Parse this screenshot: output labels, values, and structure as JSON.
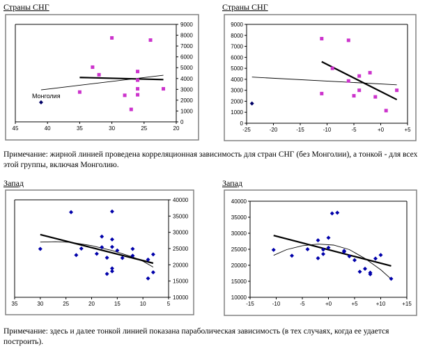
{
  "titles": [
    "Страны СНГ",
    "Страны СНГ",
    "Запад",
    "Запад"
  ],
  "notes": {
    "note1": "Примечание: жирной линией проведена корреляционная зависимость для стран СНГ (без Монголии), а тонкой - для всех этой группы, включая Монголию.",
    "note2": "Примечание: здесь и далее тонкой линией показана параболическая зависимость (в тех случаях, когда ее удается построить)."
  },
  "colors": {
    "cis_points": "#cc33cc",
    "mongolia_point": "#000066",
    "west_points": "#0000aa",
    "lines": "#000000"
  },
  "chart_data": [
    {
      "type": "scatter",
      "title": "Страны СНГ",
      "x_reversed": true,
      "xlim": [
        20,
        45
      ],
      "ylim": [
        0,
        9000
      ],
      "xticks": [
        45,
        40,
        35,
        30,
        25,
        20
      ],
      "xtick_labels": [
        "45",
        "40",
        "35",
        "30",
        "25",
        "20"
      ],
      "yticks": [
        0,
        1000,
        2000,
        3000,
        4000,
        5000,
        6000,
        7000,
        8000,
        9000
      ],
      "ytick_labels": [
        "0",
        "1000",
        "2000",
        "3000",
        "4000",
        "5000",
        "6000",
        "7000",
        "8000",
        "9000"
      ],
      "yaxis_side": "right",
      "series": [
        {
          "name": "СНГ",
          "marker": "square",
          "color": "#cc33cc",
          "points": [
            [
              30,
              7750
            ],
            [
              24,
              7550
            ],
            [
              33,
              5050
            ],
            [
              32,
              4350
            ],
            [
              26,
              4650
            ],
            [
              26,
              3850
            ],
            [
              35,
              2750
            ],
            [
              26,
              3050
            ],
            [
              22,
              3050
            ],
            [
              28,
              2450
            ],
            [
              26,
              2500
            ],
            [
              27,
              1150
            ]
          ]
        },
        {
          "name": "Монголия",
          "marker": "diamond",
          "color": "#000066",
          "points": [
            [
              41,
              1800
            ]
          ]
        }
      ],
      "annotations": [
        {
          "text": "Монголия",
          "x": 41,
          "y": 1800
        }
      ],
      "lines": [
        {
          "name": "bold",
          "type": "linear",
          "width": "bold",
          "from": [
            35,
            4100
          ],
          "to": [
            22,
            3900
          ]
        },
        {
          "name": "thin",
          "type": "linear",
          "width": "thin",
          "from": [
            41,
            2950
          ],
          "to": [
            22,
            4300
          ]
        }
      ]
    },
    {
      "type": "scatter",
      "title": "Страны СНГ",
      "x_reversed": false,
      "xlim": [
        -25,
        5
      ],
      "ylim": [
        0,
        9000
      ],
      "xticks": [
        -25,
        -20,
        -15,
        -10,
        -5,
        0,
        5
      ],
      "xtick_labels": [
        "-25",
        "-20",
        "-15",
        "-10",
        "-5",
        "+0",
        "+5"
      ],
      "yticks": [
        0,
        1000,
        2000,
        3000,
        4000,
        5000,
        6000,
        7000,
        8000,
        9000
      ],
      "ytick_labels": [
        "0",
        "1000",
        "2000",
        "3000",
        "4000",
        "5000",
        "6000",
        "7000",
        "8000",
        "9000"
      ],
      "yaxis_side": "left",
      "series": [
        {
          "name": "СНГ",
          "marker": "square",
          "color": "#cc33cc",
          "points": [
            [
              -11,
              7700
            ],
            [
              -6,
              7550
            ],
            [
              -9,
              5000
            ],
            [
              -4,
              4300
            ],
            [
              -2,
              4600
            ],
            [
              -6,
              3850
            ],
            [
              -11,
              2700
            ],
            [
              -4,
              3000
            ],
            [
              -5,
              2500
            ],
            [
              -1,
              2400
            ],
            [
              3,
              3000
            ],
            [
              1,
              1150
            ]
          ]
        },
        {
          "name": "Монголия",
          "marker": "diamond",
          "color": "#000066",
          "points": [
            [
              -24,
              1800
            ]
          ]
        }
      ],
      "lines": [
        {
          "name": "bold",
          "type": "linear",
          "width": "bold",
          "from": [
            -11,
            5600
          ],
          "to": [
            3,
            2150
          ]
        },
        {
          "name": "thin",
          "type": "linear",
          "width": "thin",
          "from": [
            -24,
            4200
          ],
          "to": [
            3,
            3500
          ]
        }
      ]
    },
    {
      "type": "scatter",
      "title": "Запад",
      "x_reversed": true,
      "xlim": [
        5,
        35
      ],
      "ylim": [
        10000,
        40000
      ],
      "xticks": [
        35,
        30,
        25,
        20,
        15,
        10,
        5
      ],
      "xtick_labels": [
        "35",
        "30",
        "25",
        "20",
        "15",
        "10",
        "5"
      ],
      "yticks": [
        10000,
        15000,
        20000,
        25000,
        30000,
        35000,
        40000
      ],
      "ytick_labels": [
        "10000",
        "15000",
        "20000",
        "25000",
        "30000",
        "35000",
        "40000"
      ],
      "yaxis_side": "right",
      "series": [
        {
          "name": "Запад",
          "marker": "diamond",
          "color": "#0000aa",
          "points": [
            [
              24,
              36200
            ],
            [
              16,
              36400
            ],
            [
              18,
              28700
            ],
            [
              16,
              27800
            ],
            [
              30,
              24900
            ],
            [
              22,
              25000
            ],
            [
              18,
              25400
            ],
            [
              16,
              25500
            ],
            [
              15,
              24400
            ],
            [
              12,
              24900
            ],
            [
              23,
              23000
            ],
            [
              19,
              23400
            ],
            [
              12,
              22800
            ],
            [
              17,
              22200
            ],
            [
              14,
              22100
            ],
            [
              9,
              21600
            ],
            [
              8,
              23200
            ],
            [
              16,
              18900
            ],
            [
              16,
              18000
            ],
            [
              17,
              17200
            ],
            [
              8,
              17700
            ],
            [
              9,
              15800
            ]
          ]
        }
      ],
      "lines": [
        {
          "name": "bold",
          "type": "linear",
          "width": "bold",
          "from": [
            30,
            29300
          ],
          "to": [
            8,
            20500
          ]
        },
        {
          "name": "thin",
          "type": "parabola",
          "width": "thin",
          "points": [
            [
              30,
              27000
            ],
            [
              27,
              27100
            ],
            [
              24,
              26900
            ],
            [
              20,
              25900
            ],
            [
              16,
              24400
            ],
            [
              12,
              22400
            ],
            [
              10,
              21100
            ],
            [
              8,
              19300
            ]
          ]
        }
      ]
    },
    {
      "type": "scatter",
      "title": "Запад",
      "x_reversed": false,
      "xlim": [
        -15,
        15
      ],
      "ylim": [
        10000,
        40000
      ],
      "xticks": [
        -15,
        -10,
        -5,
        0,
        5,
        10,
        15
      ],
      "xtick_labels": [
        "-15",
        "-10",
        "-5",
        "+0",
        "+5",
        "+10",
        "+15"
      ],
      "yticks": [
        10000,
        15000,
        20000,
        25000,
        30000,
        35000,
        40000
      ],
      "ytick_labels": [
        "10000",
        "15000",
        "20000",
        "25000",
        "30000",
        "35000",
        "40000"
      ],
      "yaxis_side": "left",
      "series": [
        {
          "name": "Запад",
          "marker": "diamond",
          "color": "#0000aa",
          "points": [
            [
              0.7,
              36200
            ],
            [
              1.7,
              36400
            ],
            [
              0,
              28600
            ],
            [
              -2,
              27800
            ],
            [
              -10.5,
              24800
            ],
            [
              -4,
              25000
            ],
            [
              -1,
              24900
            ],
            [
              0,
              25500
            ],
            [
              3,
              24500
            ],
            [
              -7,
              23000
            ],
            [
              -1,
              23500
            ],
            [
              -2,
              22200
            ],
            [
              4,
              22800
            ],
            [
              5,
              21600
            ],
            [
              9,
              22100
            ],
            [
              10,
              23200
            ],
            [
              6,
              18000
            ],
            [
              7,
              18900
            ],
            [
              8,
              17700
            ],
            [
              8,
              17200
            ],
            [
              12,
              15800
            ],
            [
              3,
              24200
            ]
          ]
        }
      ],
      "lines": [
        {
          "name": "bold",
          "type": "linear",
          "width": "bold",
          "from": [
            -10.5,
            29300
          ],
          "to": [
            12,
            19800
          ]
        },
        {
          "name": "thin",
          "type": "parabola",
          "width": "thin",
          "points": [
            [
              -10.5,
              23100
            ],
            [
              -8,
              24900
            ],
            [
              -5,
              26100
            ],
            [
              -2,
              26600
            ],
            [
              1,
              26300
            ],
            [
              4,
              24900
            ],
            [
              7,
              22100
            ],
            [
              10,
              18600
            ],
            [
              12,
              15700
            ]
          ]
        }
      ]
    }
  ]
}
